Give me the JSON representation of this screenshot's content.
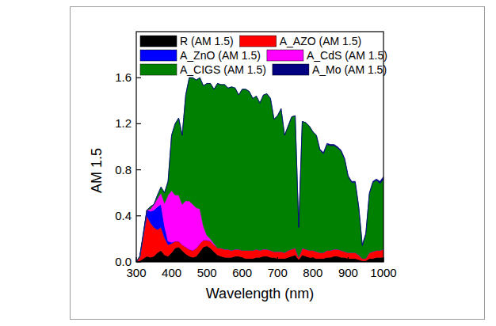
{
  "chart_data": {
    "type": "area",
    "stacked": true,
    "x_label": "Wavelength (nm)",
    "y_label": "AM 1.5",
    "legend": "top",
    "grid": false,
    "xlim": [
      300,
      1000
    ],
    "ylim": [
      0,
      2.0
    ],
    "xticks": [
      300,
      400,
      500,
      600,
      700,
      800,
      900,
      1000
    ],
    "yticks": [
      {
        "value": 0,
        "label": "0.0"
      },
      {
        "value": 0.4,
        "label": "0.4"
      },
      {
        "value": 0.8,
        "label": "0.8"
      },
      {
        "value": 1.2,
        "label": "1.2"
      },
      {
        "value": 1.6,
        "label": "1.6"
      }
    ],
    "x": [
      300,
      310,
      320,
      330,
      340,
      350,
      360,
      370,
      380,
      390,
      400,
      410,
      420,
      430,
      440,
      450,
      460,
      470,
      480,
      490,
      500,
      510,
      520,
      530,
      540,
      550,
      560,
      570,
      580,
      590,
      600,
      610,
      620,
      630,
      640,
      650,
      660,
      670,
      680,
      690,
      700,
      710,
      720,
      730,
      740,
      750,
      760,
      770,
      780,
      790,
      800,
      810,
      820,
      830,
      840,
      850,
      860,
      870,
      880,
      890,
      900,
      910,
      920,
      930,
      940,
      950,
      960,
      970,
      980,
      990,
      1000
    ],
    "series": [
      {
        "name": "R (AM 1.5)",
        "color": "#000000",
        "values": [
          0,
          0.01,
          0.03,
          0.05,
          0.04,
          0.05,
          0.08,
          0.1,
          0.06,
          0.05,
          0.08,
          0.12,
          0.13,
          0.1,
          0.07,
          0.05,
          0.04,
          0.05,
          0.09,
          0.13,
          0.14,
          0.12,
          0.09,
          0.06,
          0.05,
          0.04,
          0.04,
          0.04,
          0.05,
          0.05,
          0.04,
          0.03,
          0.03,
          0.03,
          0.04,
          0.04,
          0.05,
          0.05,
          0.04,
          0.04,
          0.03,
          0.03,
          0.03,
          0.04,
          0.05,
          0.06,
          0.02,
          0.06,
          0.05,
          0.04,
          0.04,
          0.03,
          0.03,
          0.03,
          0.04,
          0.04,
          0.05,
          0.05,
          0.04,
          0.04,
          0.03,
          0.03,
          0.03,
          0.02,
          0.01,
          0.01,
          0.03,
          0.03,
          0.04,
          0.04,
          0.04
        ]
      },
      {
        "name": "A_AZO (AM 1.5)",
        "color": "#ff0000",
        "values": [
          0,
          0.03,
          0.2,
          0.35,
          0.3,
          0.25,
          0.2,
          0.2,
          0.15,
          0.1,
          0.08,
          0.06,
          0.05,
          0.05,
          0.06,
          0.06,
          0.06,
          0.07,
          0.07,
          0.06,
          0.05,
          0.06,
          0.06,
          0.06,
          0.07,
          0.07,
          0.07,
          0.06,
          0.06,
          0.06,
          0.06,
          0.07,
          0.07,
          0.07,
          0.07,
          0.06,
          0.06,
          0.06,
          0.06,
          0.05,
          0.06,
          0.06,
          0.05,
          0.06,
          0.06,
          0.06,
          0.02,
          0.06,
          0.06,
          0.06,
          0.06,
          0.06,
          0.05,
          0.05,
          0.06,
          0.06,
          0.06,
          0.06,
          0.06,
          0.05,
          0.05,
          0.05,
          0.05,
          0.04,
          0.02,
          0.02,
          0.05,
          0.06,
          0.06,
          0.06,
          0.07
        ]
      },
      {
        "name": "A_ZnO (AM 1.5)",
        "color": "#0000ff",
        "values": [
          0,
          0,
          0,
          0.05,
          0.1,
          0.15,
          0.2,
          0.2,
          0.1,
          0.03,
          0.01,
          0,
          0,
          0,
          0,
          0,
          0,
          0,
          0,
          0,
          0,
          0,
          0,
          0,
          0,
          0,
          0,
          0,
          0,
          0,
          0,
          0,
          0,
          0,
          0,
          0,
          0,
          0,
          0,
          0,
          0,
          0,
          0,
          0,
          0,
          0,
          0,
          0,
          0,
          0,
          0,
          0,
          0,
          0,
          0,
          0,
          0,
          0,
          0,
          0,
          0,
          0,
          0,
          0,
          0,
          0,
          0,
          0,
          0,
          0,
          0
        ]
      },
      {
        "name": "A_CdS (AM 1.5)",
        "color": "#ff00ff",
        "values": [
          0,
          0,
          0,
          0,
          0.02,
          0.05,
          0.07,
          0.1,
          0.2,
          0.4,
          0.45,
          0.4,
          0.4,
          0.35,
          0.4,
          0.42,
          0.4,
          0.35,
          0.3,
          0.12,
          0.04,
          0.02,
          0.01,
          0,
          0,
          0,
          0,
          0,
          0,
          0,
          0,
          0,
          0,
          0,
          0,
          0,
          0,
          0,
          0,
          0,
          0,
          0,
          0,
          0,
          0,
          0,
          0,
          0,
          0,
          0,
          0,
          0,
          0,
          0,
          0,
          0,
          0,
          0,
          0,
          0,
          0,
          0,
          0,
          0,
          0,
          0,
          0,
          0,
          0,
          0,
          0
        ]
      },
      {
        "name": "A_CIGS (AM 1.5)",
        "color": "#008000",
        "values": [
          0,
          0.01,
          0.02,
          0,
          0.02,
          0,
          0.03,
          0.05,
          0.09,
          0.12,
          0.48,
          0.62,
          0.67,
          0.6,
          0.92,
          1.07,
          1.1,
          1.11,
          1.14,
          1.22,
          1.32,
          1.35,
          1.34,
          1.43,
          1.42,
          1.43,
          1.4,
          1.42,
          1.4,
          1.34,
          1.4,
          1.4,
          1.38,
          1.32,
          1.33,
          1.28,
          1.34,
          1.35,
          1.32,
          1.15,
          1.18,
          1.24,
          1.02,
          1.08,
          1.15,
          1.15,
          0.26,
          1.1,
          1.1,
          1.08,
          1.03,
          1.01,
          0.89,
          0.86,
          0.92,
          0.91,
          0.9,
          0.88,
          0.86,
          0.8,
          0.66,
          0.61,
          0.61,
          0.41,
          0.11,
          0.21,
          0.51,
          0.6,
          0.61,
          0.58,
          0.61
        ]
      },
      {
        "name": "A_Mo (AM 1.5)",
        "color": "#000080",
        "values": [
          0,
          0,
          0,
          0,
          0,
          0,
          0,
          0,
          0,
          0,
          0,
          0,
          0,
          0,
          0,
          0,
          0,
          0,
          0,
          0,
          0,
          0,
          0,
          0,
          0,
          0,
          0,
          0,
          0,
          0,
          0,
          0,
          0,
          0,
          0,
          0,
          0,
          0,
          0,
          0,
          0,
          0,
          0,
          0,
          0,
          0,
          0,
          0,
          0,
          0,
          0,
          0,
          0.01,
          0.01,
          0.01,
          0.01,
          0.01,
          0.01,
          0.01,
          0.01,
          0.01,
          0.01,
          0.01,
          0.01,
          0.01,
          0.01,
          0.01,
          0.01,
          0.01,
          0.02,
          0.02
        ]
      }
    ]
  }
}
